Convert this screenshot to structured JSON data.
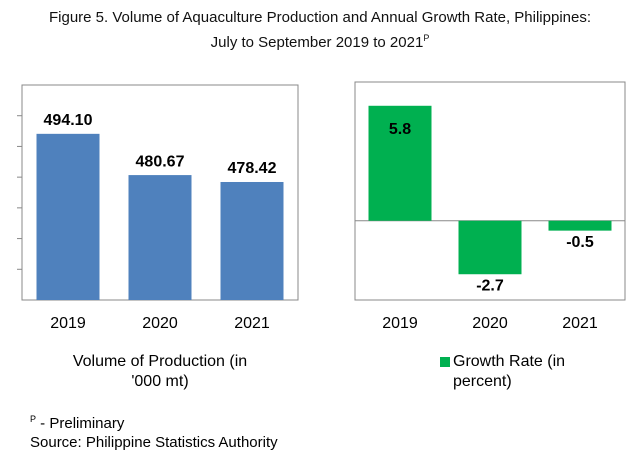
{
  "title": "Figure 5. Volume of Aquaculture Production and  Annual Growth Rate, Philippines: July to  September 2019 to 2021",
  "title_superscript": "P",
  "footnote_marker": "P",
  "footnote": " - Preliminary",
  "source": "Source: Philippine Statistics Authority",
  "chart_data": [
    {
      "type": "bar",
      "categories": [
        "2019",
        "2020",
        "2021"
      ],
      "values": [
        494.1,
        480.67,
        478.42
      ],
      "value_labels": [
        "494.10",
        "480.67",
        "478.42"
      ],
      "color": "#4f81bd",
      "ylim": [
        440,
        510
      ],
      "yticks": [
        450,
        460,
        470,
        480,
        490,
        500
      ],
      "xlabel": "Volume of Production (in '000 mt)"
    },
    {
      "type": "bar",
      "categories": [
        "2019",
        "2020",
        "2021"
      ],
      "series": [
        {
          "name": "Growth Rate (in percent)",
          "color": "#00b050",
          "values": [
            5.8,
            -2.7,
            -0.5
          ]
        }
      ],
      "ylim": [
        -4,
        7
      ]
    }
  ]
}
